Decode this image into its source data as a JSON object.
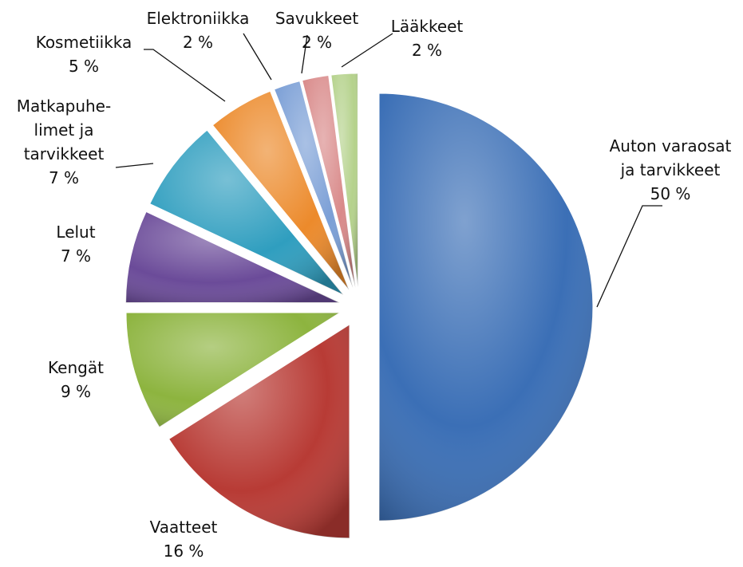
{
  "chart_data": {
    "type": "pie",
    "categories": [
      "Auton varaosat\nja tarvikkeet",
      "Vaatteet",
      "Kengät",
      "Lelut",
      "Matkapuhe-\nlimet ja\ntarvikkeet",
      "Kosmetiikka",
      "Elektroniikka",
      "Savukkeet",
      "Lääkkeet"
    ],
    "values": [
      50,
      16,
      9,
      7,
      7,
      5,
      2,
      2,
      2
    ],
    "value_labels": [
      "50 %",
      "16 %",
      "9 %",
      "7 %",
      "7 %",
      "5 %",
      "2 %",
      "2 %",
      "2 %"
    ],
    "colors": [
      "#3b6fb6",
      "#b83b35",
      "#8db43f",
      "#6b4b99",
      "#2f9ebf",
      "#ec8a2b",
      "#7b9fd6",
      "#d98a8a",
      "#b5d28c"
    ]
  }
}
